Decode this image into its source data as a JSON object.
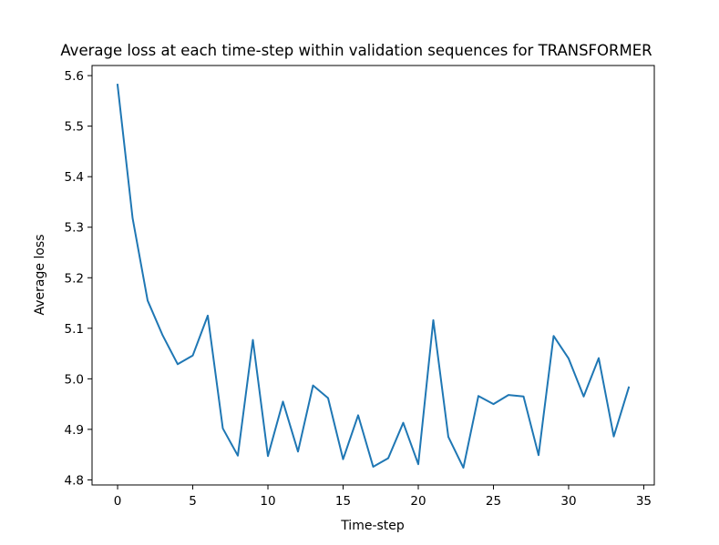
{
  "chart_data": {
    "type": "line",
    "title": "Average loss at each time-step within validation sequences for TRANSFORMER",
    "xlabel": "Time-step",
    "ylabel": "Average loss",
    "xlim": [
      -1.7,
      35.7
    ],
    "ylim": [
      4.79,
      5.62
    ],
    "xticks": [
      0,
      5,
      10,
      15,
      20,
      25,
      30,
      35
    ],
    "yticks": [
      4.8,
      4.9,
      5.0,
      5.1,
      5.2,
      5.3,
      5.4,
      5.5,
      5.6
    ],
    "xtick_labels": [
      "0",
      "5",
      "10",
      "15",
      "20",
      "25",
      "30",
      "35"
    ],
    "ytick_labels": [
      "4.8",
      "4.9",
      "5.0",
      "5.1",
      "5.2",
      "5.3",
      "5.4",
      "5.5",
      "5.6"
    ],
    "grid": false,
    "series": [
      {
        "name": "loss",
        "color": "#1f77b4",
        "x": [
          0,
          1,
          2,
          3,
          4,
          5,
          6,
          7,
          8,
          9,
          10,
          11,
          12,
          13,
          14,
          15,
          16,
          17,
          18,
          19,
          20,
          21,
          22,
          23,
          24,
          25,
          26,
          27,
          28,
          29,
          30,
          31,
          32,
          33,
          34
        ],
        "y": [
          5.582,
          5.318,
          5.155,
          5.086,
          5.029,
          5.046,
          5.125,
          4.902,
          4.848,
          5.077,
          4.847,
          4.955,
          4.856,
          4.987,
          4.962,
          4.841,
          4.928,
          4.826,
          4.843,
          4.913,
          4.831,
          5.116,
          4.885,
          4.824,
          4.966,
          4.95,
          4.968,
          4.965,
          4.849,
          5.085,
          5.04,
          4.965,
          5.041,
          4.886,
          4.983
        ]
      }
    ]
  }
}
